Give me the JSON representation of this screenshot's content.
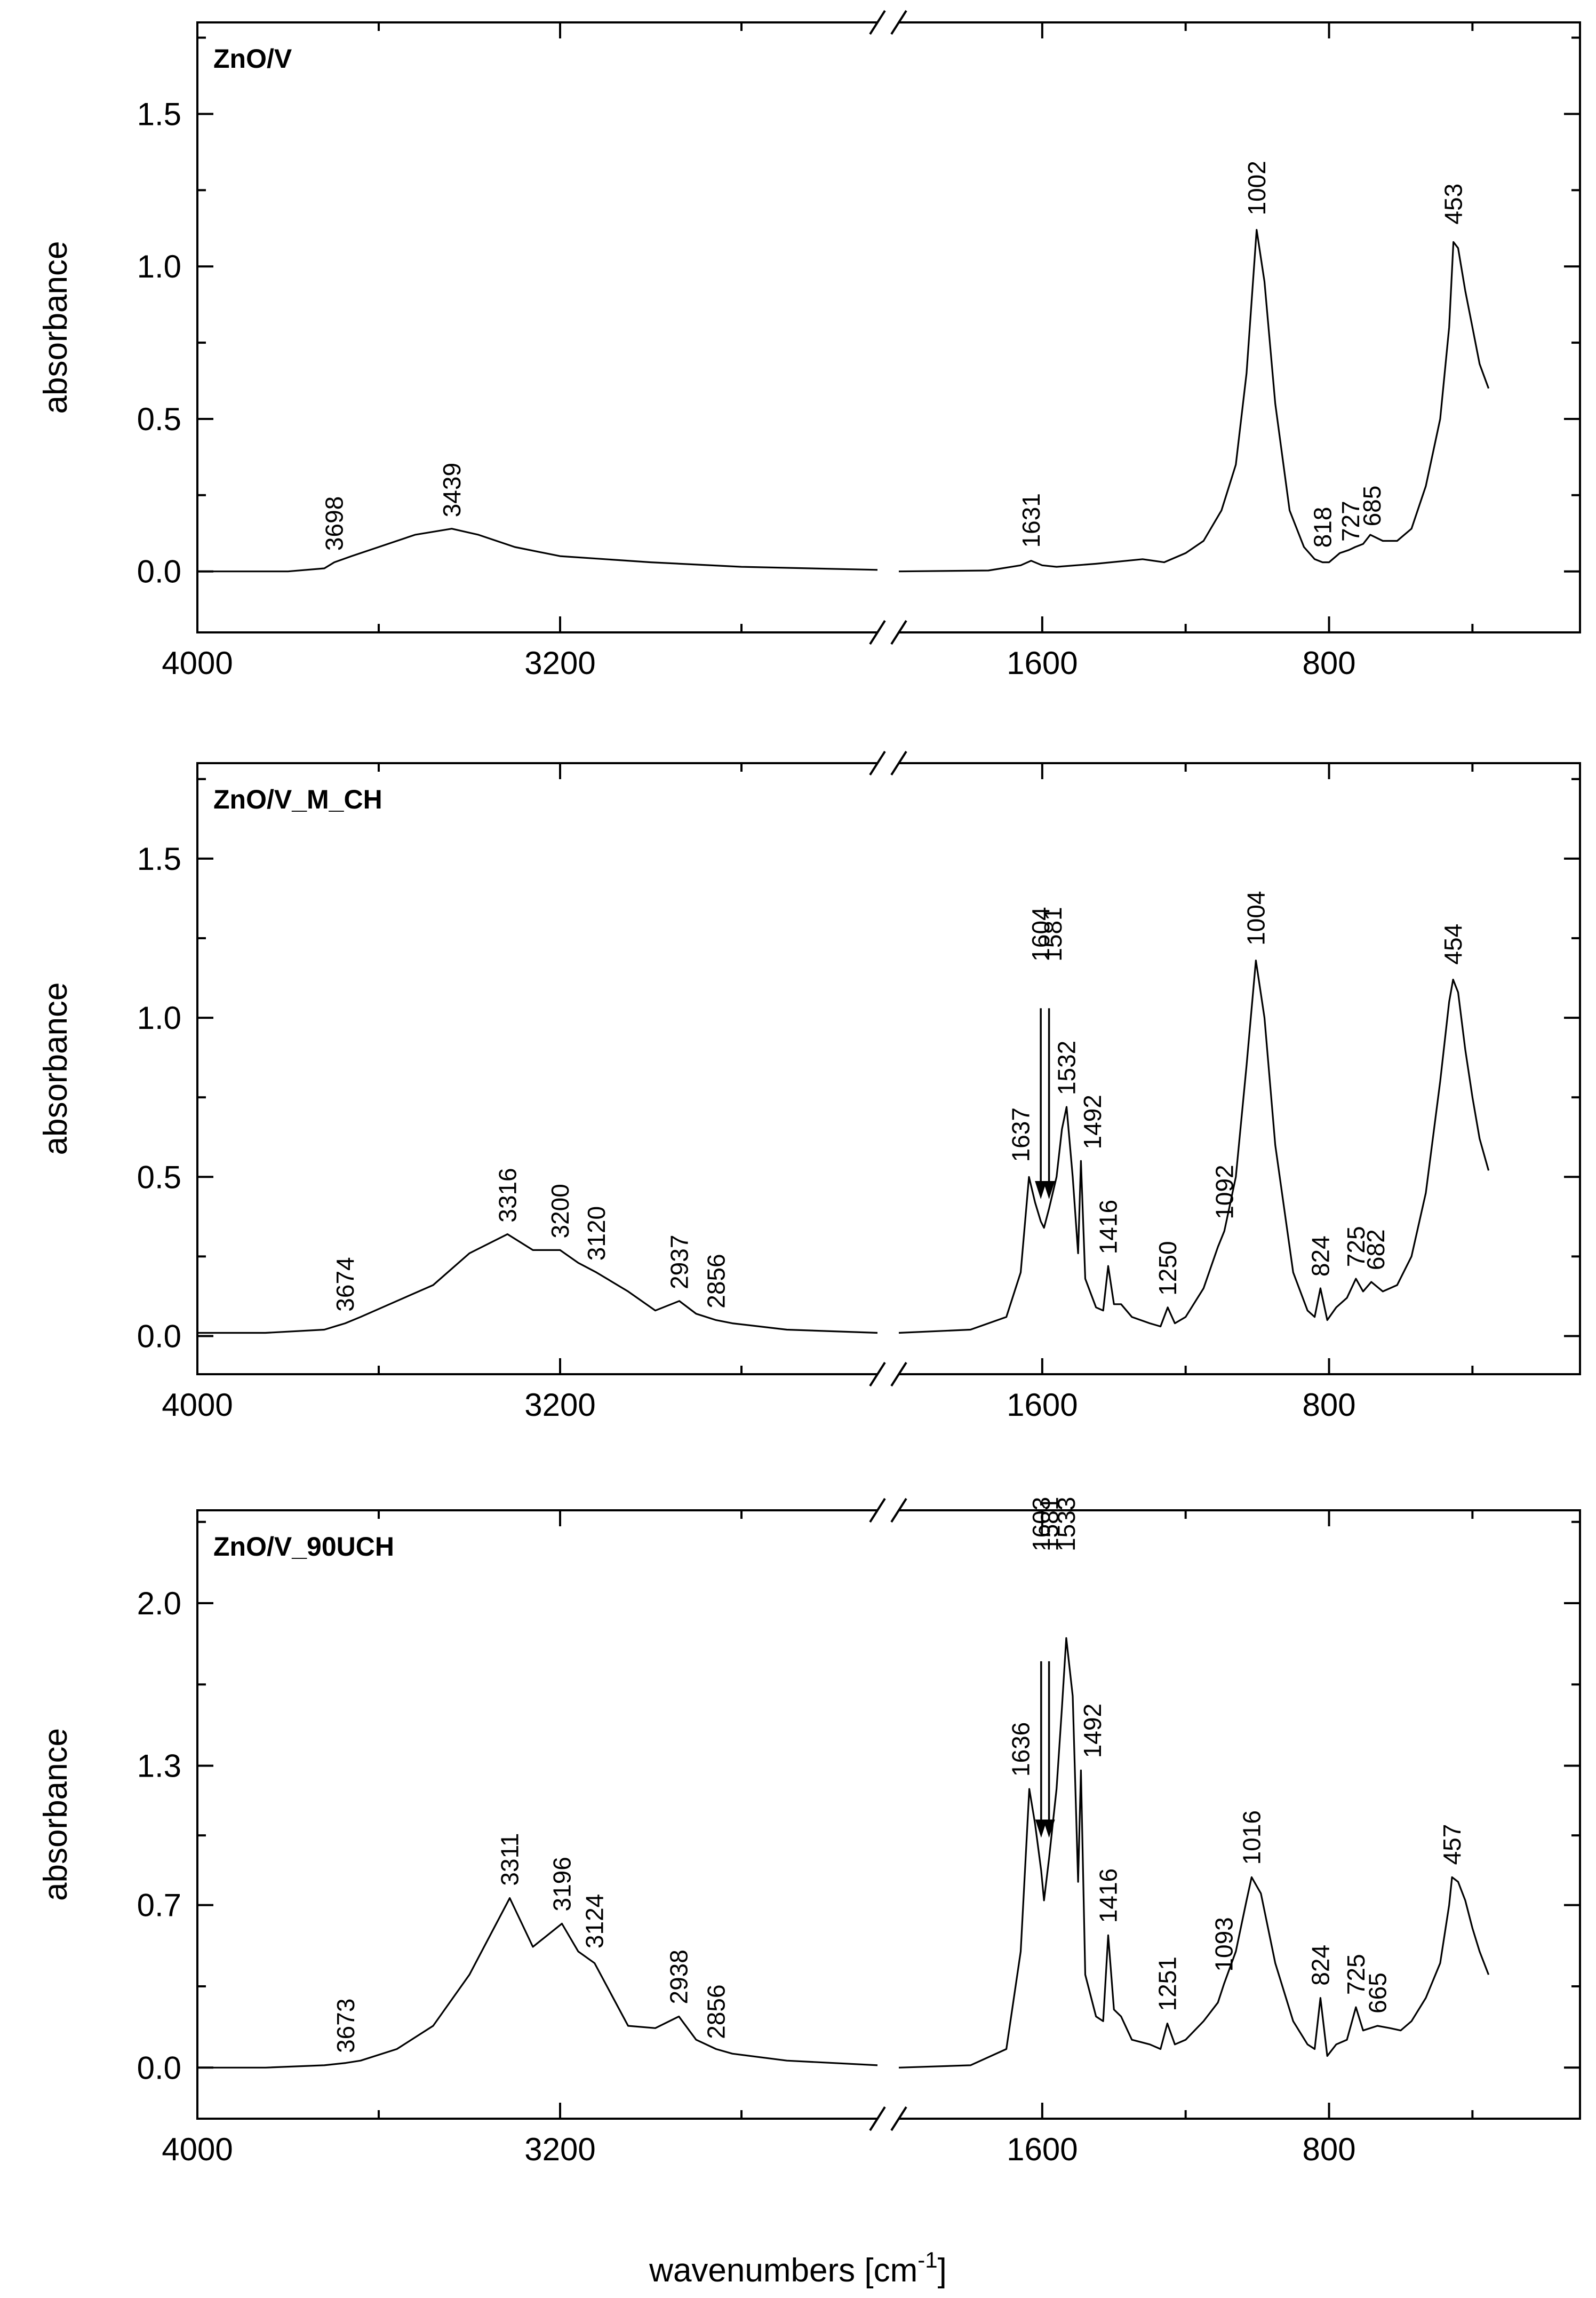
{
  "figure": {
    "xlabel": "wavenumbers [cm",
    "xlabel_sup": "-1",
    "xlabel_end": "]",
    "ylabel": "absorbance"
  },
  "chart_data": [
    {
      "type": "line",
      "title": "ZnO/V",
      "xlabel": "wavenumbers [cm-1]",
      "ylabel": "absorbance",
      "x_axis_break": [
        2500,
        2000
      ],
      "xlim_left": [
        4000,
        2500
      ],
      "xlim_right": [
        2000,
        100
      ],
      "ylim": [
        -0.2,
        1.8
      ],
      "xticks": [
        4000,
        3200,
        1600,
        800
      ],
      "yticks": [
        "0.0",
        "0.5",
        "1.0",
        "1.5"
      ],
      "ytick_values": [
        0.0,
        0.5,
        1.0,
        1.5
      ],
      "series": [
        {
          "name": "ZnO/V",
          "x": [
            4000,
            3800,
            3720,
            3698,
            3660,
            3600,
            3520,
            3439,
            3380,
            3300,
            3200,
            3000,
            2800,
            2500,
            2000,
            1750,
            1660,
            1631,
            1600,
            1560,
            1450,
            1320,
            1260,
            1200,
            1150,
            1100,
            1060,
            1030,
            1002,
            980,
            950,
            910,
            870,
            840,
            818,
            800,
            770,
            745,
            727,
            705,
            685,
            650,
            610,
            570,
            530,
            490,
            465,
            453,
            440,
            420,
            400,
            380,
            355
          ],
          "values": [
            0.0,
            0.0,
            0.01,
            0.03,
            0.05,
            0.08,
            0.12,
            0.14,
            0.12,
            0.08,
            0.05,
            0.03,
            0.015,
            0.005,
            0.0,
            0.003,
            0.02,
            0.035,
            0.02,
            0.015,
            0.025,
            0.04,
            0.03,
            0.06,
            0.1,
            0.2,
            0.35,
            0.65,
            1.12,
            0.95,
            0.55,
            0.2,
            0.08,
            0.04,
            0.03,
            0.03,
            0.06,
            0.07,
            0.08,
            0.09,
            0.12,
            0.1,
            0.1,
            0.14,
            0.28,
            0.5,
            0.8,
            1.08,
            1.06,
            0.92,
            0.8,
            0.68,
            0.6
          ]
        }
      ],
      "annotations": [
        {
          "text": "3698",
          "x": 3698,
          "y": 0.05
        },
        {
          "text": "3439",
          "x": 3439,
          "y": 0.16
        },
        {
          "text": "1631",
          "x": 1631,
          "y": 0.06
        },
        {
          "text": "1002",
          "x": 1002,
          "y": 1.15
        },
        {
          "text": "818",
          "x": 818,
          "y": 0.06
        },
        {
          "text": "727",
          "x": 740,
          "y": 0.08
        },
        {
          "text": "685",
          "x": 680,
          "y": 0.13
        },
        {
          "text": "453",
          "x": 453,
          "y": 1.12
        }
      ]
    },
    {
      "type": "line",
      "title": "ZnO/V_M_CH",
      "xlabel": "wavenumbers [cm-1]",
      "ylabel": "absorbance",
      "x_axis_break": [
        2500,
        2000
      ],
      "xlim_left": [
        4000,
        2500
      ],
      "xlim_right": [
        2000,
        100
      ],
      "ylim": [
        -0.12,
        1.8
      ],
      "xticks": [
        4000,
        3200,
        1600,
        800
      ],
      "yticks": [
        "0.0",
        "0.5",
        "1.0",
        "1.5"
      ],
      "ytick_values": [
        0.0,
        0.5,
        1.0,
        1.5
      ],
      "series": [
        {
          "name": "ZnO/V_M_CH",
          "x": [
            4000,
            3850,
            3720,
            3674,
            3640,
            3560,
            3480,
            3400,
            3316,
            3260,
            3200,
            3160,
            3120,
            3050,
            2990,
            2937,
            2900,
            2856,
            2820,
            2700,
            2500,
            2000,
            1800,
            1700,
            1660,
            1637,
            1620,
            1604,
            1595,
            1581,
            1560,
            1545,
            1532,
            1515,
            1500,
            1492,
            1480,
            1450,
            1430,
            1416,
            1400,
            1380,
            1350,
            1300,
            1270,
            1250,
            1230,
            1200,
            1150,
            1110,
            1092,
            1060,
            1030,
            1004,
            980,
            950,
            900,
            860,
            840,
            824,
            805,
            780,
            750,
            725,
            705,
            682,
            650,
            610,
            570,
            530,
            490,
            465,
            454,
            440,
            420,
            400,
            380,
            355
          ],
          "values": [
            0.01,
            0.01,
            0.02,
            0.04,
            0.06,
            0.11,
            0.16,
            0.26,
            0.32,
            0.27,
            0.27,
            0.23,
            0.2,
            0.14,
            0.08,
            0.11,
            0.07,
            0.05,
            0.04,
            0.02,
            0.01,
            0.01,
            0.02,
            0.06,
            0.2,
            0.5,
            0.42,
            0.36,
            0.34,
            0.4,
            0.5,
            0.65,
            0.72,
            0.5,
            0.26,
            0.55,
            0.18,
            0.09,
            0.08,
            0.22,
            0.1,
            0.1,
            0.06,
            0.04,
            0.03,
            0.09,
            0.04,
            0.06,
            0.15,
            0.28,
            0.33,
            0.5,
            0.85,
            1.18,
            1.0,
            0.6,
            0.2,
            0.08,
            0.06,
            0.15,
            0.05,
            0.09,
            0.12,
            0.18,
            0.14,
            0.17,
            0.14,
            0.16,
            0.25,
            0.45,
            0.8,
            1.05,
            1.12,
            1.08,
            0.9,
            0.75,
            0.62,
            0.52
          ]
        }
      ],
      "annotations": [
        {
          "text": "3674",
          "x": 3674,
          "y": 0.06
        },
        {
          "text": "3316",
          "x": 3316,
          "y": 0.34
        },
        {
          "text": "3200",
          "x": 3200,
          "y": 0.29
        },
        {
          "text": "3120",
          "x": 3120,
          "y": 0.22
        },
        {
          "text": "2937",
          "x": 2937,
          "y": 0.13
        },
        {
          "text": "2856",
          "x": 2856,
          "y": 0.07
        },
        {
          "text": "1637",
          "x": 1660,
          "y": 0.53
        },
        {
          "text": "1604",
          "x": 1604,
          "y": 1.16
        },
        {
          "text": "1581",
          "x": 1570,
          "y": 1.16
        },
        {
          "text": "1532",
          "x": 1532,
          "y": 0.74
        },
        {
          "text": "1492",
          "x": 1460,
          "y": 0.57
        },
        {
          "text": "1416",
          "x": 1416,
          "y": 0.24
        },
        {
          "text": "1250",
          "x": 1250,
          "y": 0.11
        },
        {
          "text": "1092",
          "x": 1092,
          "y": 0.35
        },
        {
          "text": "1004",
          "x": 1004,
          "y": 1.21
        },
        {
          "text": "824",
          "x": 824,
          "y": 0.17
        },
        {
          "text": "725",
          "x": 725,
          "y": 0.2
        },
        {
          "text": "682",
          "x": 670,
          "y": 0.19
        },
        {
          "text": "454",
          "x": 454,
          "y": 1.15
        }
      ],
      "arrows": [
        {
          "label": "1604",
          "x": 1604,
          "y_from": 1.03,
          "y_to": 0.43
        },
        {
          "label": "1581",
          "x": 1581,
          "y_from": 1.03,
          "y_to": 0.43
        }
      ]
    },
    {
      "type": "line",
      "title": "ZnO/V_90UCH",
      "xlabel": "wavenumbers [cm-1]",
      "ylabel": "absorbance",
      "x_axis_break": [
        2500,
        2000
      ],
      "xlim_left": [
        4000,
        2500
      ],
      "xlim_right": [
        2000,
        100
      ],
      "ylim": [
        -0.22,
        2.4
      ],
      "xticks": [
        4000,
        3200,
        1600,
        800
      ],
      "yticks": [
        "0.0",
        "0.7",
        "1.3",
        "2.0"
      ],
      "ytick_values": [
        0.0,
        0.7,
        1.3,
        2.0
      ],
      "series": [
        {
          "name": "ZnO/V_90UCH",
          "x": [
            4000,
            3850,
            3720,
            3673,
            3640,
            3560,
            3480,
            3400,
            3311,
            3260,
            3196,
            3160,
            3124,
            3050,
            2990,
            2938,
            2900,
            2856,
            2820,
            2700,
            2500,
            2000,
            1800,
            1700,
            1660,
            1636,
            1620,
            1603,
            1595,
            1581,
            1560,
            1545,
            1533,
            1515,
            1500,
            1492,
            1480,
            1450,
            1430,
            1416,
            1400,
            1380,
            1350,
            1300,
            1270,
            1251,
            1230,
            1200,
            1150,
            1110,
            1093,
            1060,
            1030,
            1016,
            990,
            950,
            900,
            860,
            840,
            824,
            805,
            780,
            750,
            725,
            705,
            665,
            630,
            600,
            570,
            530,
            490,
            465,
            457,
            440,
            420,
            400,
            380,
            355
          ],
          "values": [
            0.0,
            0.0,
            0.01,
            0.02,
            0.03,
            0.08,
            0.18,
            0.4,
            0.73,
            0.52,
            0.62,
            0.5,
            0.45,
            0.18,
            0.17,
            0.22,
            0.12,
            0.08,
            0.06,
            0.03,
            0.01,
            0.0,
            0.01,
            0.08,
            0.5,
            1.2,
            1.05,
            0.85,
            0.72,
            0.9,
            1.2,
            1.55,
            1.85,
            1.6,
            0.8,
            1.28,
            0.4,
            0.22,
            0.2,
            0.57,
            0.25,
            0.22,
            0.12,
            0.1,
            0.08,
            0.19,
            0.1,
            0.12,
            0.2,
            0.28,
            0.36,
            0.5,
            0.72,
            0.82,
            0.75,
            0.45,
            0.2,
            0.1,
            0.08,
            0.3,
            0.05,
            0.1,
            0.12,
            0.26,
            0.16,
            0.18,
            0.17,
            0.16,
            0.2,
            0.3,
            0.45,
            0.7,
            0.82,
            0.8,
            0.72,
            0.6,
            0.5,
            0.4
          ]
        }
      ],
      "annotations": [
        {
          "text": "3673",
          "x": 3673,
          "y": 0.04
        },
        {
          "text": "3311",
          "x": 3311,
          "y": 0.76
        },
        {
          "text": "3196",
          "x": 3196,
          "y": 0.65
        },
        {
          "text": "3124",
          "x": 3124,
          "y": 0.49
        },
        {
          "text": "2938",
          "x": 2938,
          "y": 0.25
        },
        {
          "text": "2856",
          "x": 2856,
          "y": 0.1
        },
        {
          "text": "1636",
          "x": 1660,
          "y": 1.23
        },
        {
          "text": "1603",
          "x": 1603,
          "y": 2.2
        },
        {
          "text": "1581",
          "x": 1580,
          "y": 2.2
        },
        {
          "text": "1533",
          "x": 1533,
          "y": 2.2
        },
        {
          "text": "1492",
          "x": 1460,
          "y": 1.31
        },
        {
          "text": "1416",
          "x": 1416,
          "y": 0.6
        },
        {
          "text": "1251",
          "x": 1251,
          "y": 0.22
        },
        {
          "text": "1093",
          "x": 1093,
          "y": 0.39
        },
        {
          "text": "1016",
          "x": 1016,
          "y": 0.85
        },
        {
          "text": "824",
          "x": 824,
          "y": 0.33
        },
        {
          "text": "725",
          "x": 725,
          "y": 0.29
        },
        {
          "text": "665",
          "x": 665,
          "y": 0.21
        },
        {
          "text": "457",
          "x": 457,
          "y": 0.85
        }
      ],
      "arrows": [
        {
          "label": "1603",
          "x": 1603,
          "y_from": 1.75,
          "y_to": 0.99
        },
        {
          "label": "1581",
          "x": 1581,
          "y_from": 1.75,
          "y_to": 0.99
        }
      ]
    }
  ]
}
